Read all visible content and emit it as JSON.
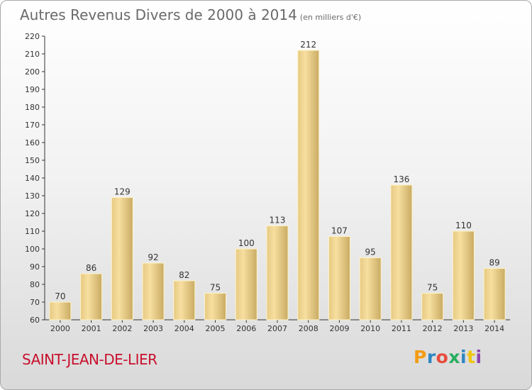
{
  "header": {
    "title": "Autres Revenus Divers de 2000 à 2014",
    "subtitle": "(en milliers d'€)"
  },
  "footer": {
    "commune": "SAINT-JEAN-DE-LIER",
    "logo_text": "Proxiti",
    "logo_colors": [
      "#f39c12",
      "#2e86c1",
      "#e74c3c",
      "#27ae60",
      "#2e86c1",
      "#f1c40f",
      "#8e44ad"
    ]
  },
  "colors": {
    "bar_light": "#f7dc9a",
    "bar_dark": "#c9ab63",
    "axis": "#333333",
    "grid": "#d0d0d0",
    "commune": "#c8102e"
  },
  "chart_data": {
    "type": "bar",
    "title": "Autres Revenus Divers de 2000 à 2014",
    "subtitle": "(en milliers d'€)",
    "xlabel": "",
    "ylabel": "",
    "categories": [
      "2000",
      "2001",
      "2002",
      "2003",
      "2004",
      "2005",
      "2006",
      "2007",
      "2008",
      "2009",
      "2010",
      "2011",
      "2012",
      "2013",
      "2014"
    ],
    "values": [
      70,
      86,
      129,
      92,
      82,
      75,
      100,
      113,
      212,
      107,
      95,
      136,
      75,
      110,
      89
    ],
    "ylim": [
      60,
      220
    ],
    "yticks": [
      60,
      70,
      80,
      90,
      100,
      110,
      120,
      130,
      140,
      150,
      160,
      170,
      180,
      190,
      200,
      210,
      220
    ],
    "grid": false,
    "legend": "none"
  }
}
